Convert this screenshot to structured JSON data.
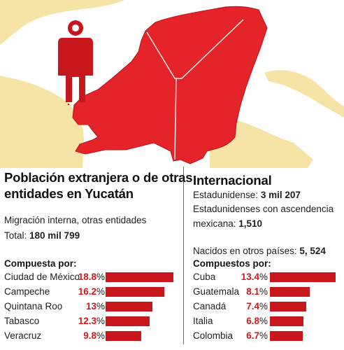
{
  "colors": {
    "accent": "#c8161d",
    "map_land_highlight": "#e5242a",
    "map_land_other": "#f6e3a6",
    "figure": "#c8161d"
  },
  "icons": {
    "person": "person-icon"
  },
  "left": {
    "title_line1": "Población extranjera o de otras",
    "title_line2": "entidades en Yucatán",
    "subtitle": "Migración interna, otras entidades",
    "total_label": "Total: ",
    "total_value": "180 mil 799",
    "breakdown_heading": "Compuesta por:"
  },
  "right": {
    "title": "Internacional",
    "us_label": "Estadunidense: ",
    "us_value": "3 mil 207",
    "us_mex_line1": "Estadunidenses con ascendencia",
    "us_mex_line2_label": "mexicana: ",
    "us_mex_value": "1,510",
    "born_label": "Nacidos en otros países: ",
    "born_value": "5, 524",
    "breakdown_heading": "Compuestos por:"
  },
  "chart_data": [
    {
      "type": "bar",
      "orientation": "horizontal",
      "title": "Compuesta por:",
      "unit": "%",
      "categories": [
        "Ciudad de México",
        "Campeche",
        "Quintana Roo",
        "Tabasco",
        "Veracruz"
      ],
      "values": [
        18.8,
        16.2,
        13,
        12.3,
        9.8
      ],
      "value_labels": [
        "18.8",
        "16.2",
        "13",
        "12.3",
        "9.8"
      ],
      "xlim": [
        0,
        18.8
      ]
    },
    {
      "type": "bar",
      "orientation": "horizontal",
      "title": "Compuestos por:",
      "unit": "%",
      "categories": [
        "Cuba",
        "Guatemala",
        "Canadá",
        "Italia",
        "Colombia"
      ],
      "values": [
        13.4,
        8.1,
        7.4,
        6.8,
        6.7
      ],
      "value_labels": [
        "13.4",
        "8.1",
        "7.4",
        "6.8",
        "6.7"
      ],
      "xlim": [
        0,
        13.4
      ]
    }
  ]
}
